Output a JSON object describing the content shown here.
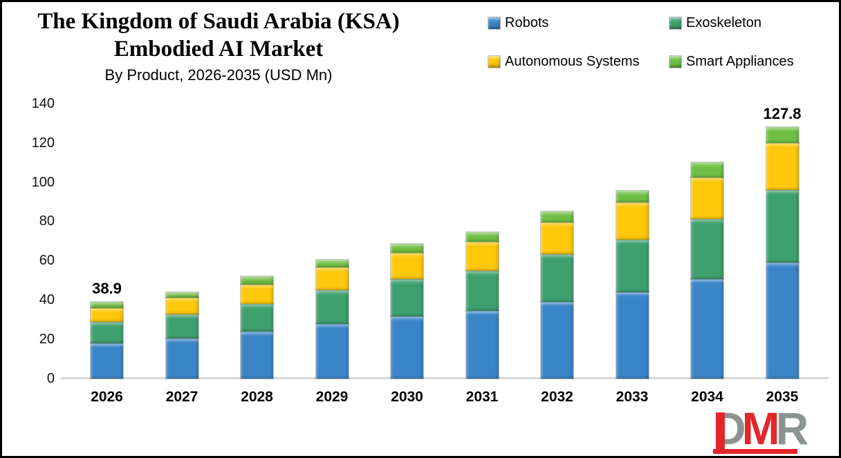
{
  "title": {
    "line1": "The Kingdom of Saudi Arabia (KSA)",
    "line2": "Embodied AI Market",
    "subtitle": "By Product, 2026-2035 (USD Mn)"
  },
  "colors": {
    "robots_blue": "#3A85C7",
    "exoskeleton_green": "#3FA06F",
    "autonomous_yellow": "#FFC80A",
    "smart_appliances_green": "#6FBE44",
    "axis_line_gray": "#D7D7D7",
    "logo_gray": "#8B9491",
    "logo_red": "#E2262B"
  },
  "legend": [
    {
      "label": "Robots",
      "color": "#3A85C7"
    },
    {
      "label": "Exoskeleton",
      "color": "#3FA06F"
    },
    {
      "label": "Autonomous Systems",
      "color": "#FFC80A"
    },
    {
      "label": "Smart Appliances",
      "color": "#6FBE44"
    }
  ],
  "chart_data": {
    "type": "bar",
    "stacked": true,
    "title": "The Kingdom of Saudi Arabia (KSA) Embodied AI Market",
    "subtitle": "By Product, 2026-2035 (USD Mn)",
    "xlabel": "",
    "ylabel": "",
    "ylim": [
      0,
      140
    ],
    "y_ticks": [
      0,
      20,
      40,
      60,
      80,
      100,
      120,
      140
    ],
    "grid": false,
    "legend_position": "top-right",
    "categories": [
      "2026",
      "2027",
      "2028",
      "2029",
      "2030",
      "2031",
      "2032",
      "2033",
      "2034",
      "2035"
    ],
    "series": [
      {
        "name": "Robots",
        "color": "#3A85C7",
        "values": [
          18.0,
          20.4,
          24.0,
          27.9,
          31.6,
          34.3,
          39.0,
          43.9,
          50.7,
          59.2
        ]
      },
      {
        "name": "Exoskeleton",
        "color": "#3FA06F",
        "values": [
          11.0,
          12.3,
          13.8,
          17.0,
          19.1,
          20.5,
          24.3,
          26.8,
          30.5,
          36.6
        ]
      },
      {
        "name": "Autonomous Systems",
        "color": "#FFC80A",
        "values": [
          7.0,
          8.6,
          9.9,
          11.7,
          13.2,
          14.7,
          16.1,
          18.9,
          21.1,
          24.0
        ]
      },
      {
        "name": "Smart Appliances",
        "color": "#6FBE44",
        "values": [
          2.9,
          2.6,
          4.2,
          4.0,
          4.6,
          4.9,
          5.6,
          6.1,
          7.6,
          8.0
        ]
      }
    ],
    "totals_estimated": [
      38.9,
      43.9,
      51.9,
      60.6,
      68.5,
      74.4,
      85.0,
      95.7,
      109.9,
      127.8
    ],
    "annotations": [
      {
        "category": "2026",
        "text": "38.9"
      },
      {
        "category": "2035",
        "text": "127.8"
      }
    ]
  },
  "watermark": {
    "letters": [
      {
        "char": "D",
        "color": "#8B9491"
      },
      {
        "char": "M",
        "color": "#E2262B"
      },
      {
        "char": "R",
        "color": "#8B9491"
      }
    ]
  }
}
